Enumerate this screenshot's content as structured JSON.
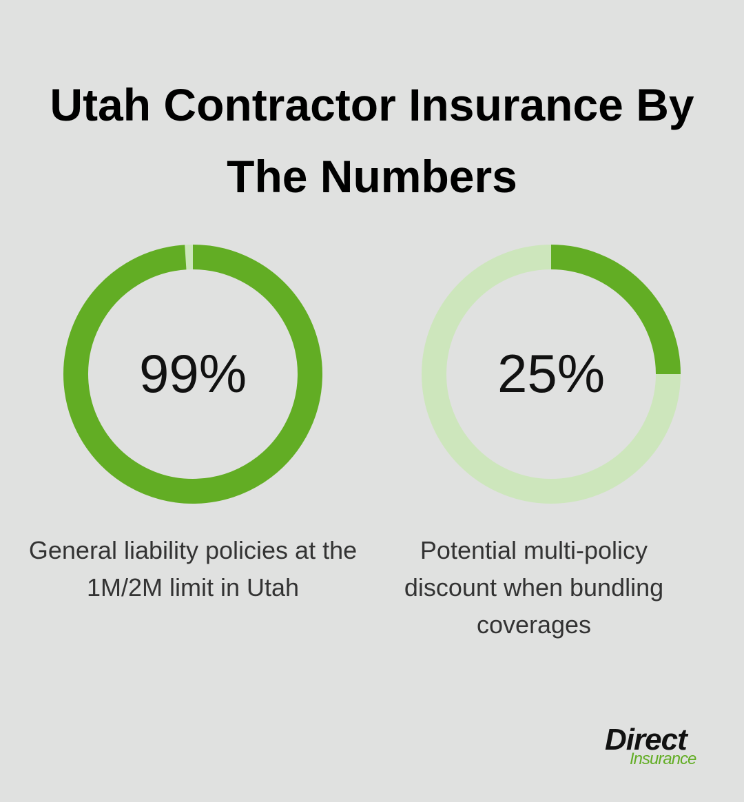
{
  "title": "Utah Contractor Insurance By The Numbers",
  "chart_data": [
    {
      "type": "donut",
      "values": [
        99
      ],
      "value_labels": [
        "99%"
      ],
      "ylim": [
        0,
        100
      ],
      "color": "#62ad24",
      "track_color": "#cde6bc",
      "caption": "General liability policies at the 1M/2M limit in Utah"
    },
    {
      "type": "donut",
      "values": [
        25
      ],
      "value_labels": [
        "25%"
      ],
      "ylim": [
        0,
        100
      ],
      "color": "#62ad24",
      "track_color": "#cde6bc",
      "caption": "Potential multi-policy discount when bundling coverages"
    }
  ],
  "logo": {
    "brand": "Direct",
    "sub": "Insurance"
  }
}
